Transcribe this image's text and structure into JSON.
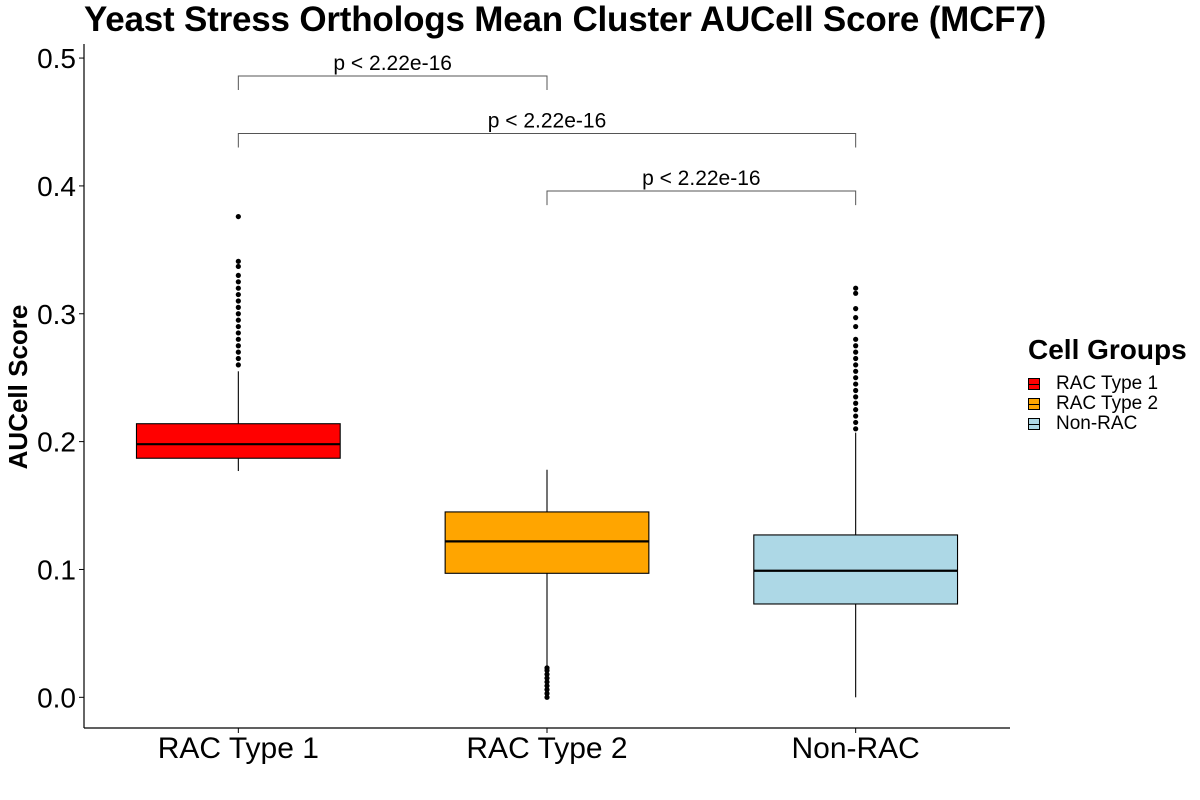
{
  "chart_data": {
    "type": "box",
    "title": "Yeast Stress Orthologs Mean Cluster AUCell Score (MCF7)",
    "xlabel": "",
    "ylabel": "AUCell Score",
    "ylim": [
      -0.024,
      0.511
    ],
    "yticks": [
      "0.0",
      "0.1",
      "0.2",
      "0.3",
      "0.4",
      "0.5"
    ],
    "categories": [
      "RAC Type 1",
      "RAC Type 2",
      "Non-RAC"
    ],
    "series": [
      {
        "name": "RAC Type 1",
        "color": "#ff0000",
        "whisker_low": 0.177,
        "q1": 0.187,
        "median": 0.198,
        "q3": 0.214,
        "whisker_high": 0.255,
        "outliers": [
          0.26,
          0.265,
          0.27,
          0.275,
          0.28,
          0.285,
          0.29,
          0.295,
          0.3,
          0.305,
          0.31,
          0.315,
          0.32,
          0.325,
          0.33,
          0.337,
          0.341,
          0.376
        ]
      },
      {
        "name": "RAC Type 2",
        "color": "#ffa500",
        "whisker_low": 0.024,
        "q1": 0.097,
        "median": 0.122,
        "q3": 0.145,
        "whisker_high": 0.178,
        "outliers": [
          0.0,
          0.003,
          0.006,
          0.009,
          0.012,
          0.015,
          0.018,
          0.021,
          0.023
        ]
      },
      {
        "name": "Non-RAC",
        "color": "#add8e6",
        "whisker_low": 0.0,
        "q1": 0.073,
        "median": 0.099,
        "q3": 0.127,
        "whisker_high": 0.207,
        "outliers": [
          0.21,
          0.215,
          0.22,
          0.225,
          0.23,
          0.235,
          0.24,
          0.245,
          0.25,
          0.255,
          0.26,
          0.265,
          0.27,
          0.275,
          0.28,
          0.29,
          0.297,
          0.304,
          0.316,
          0.32
        ]
      }
    ],
    "comparisons": [
      {
        "from": "RAC Type 1",
        "to": "RAC Type 2",
        "label": "p < 2.22e-16",
        "y": 0.486,
        "drop": 0.011
      },
      {
        "from": "RAC Type 1",
        "to": "Non-RAC",
        "label": "p < 2.22e-16",
        "y": 0.441,
        "drop": 0.011
      },
      {
        "from": "RAC Type 2",
        "to": "Non-RAC",
        "label": "p < 2.22e-16",
        "y": 0.396,
        "drop": 0.011
      }
    ],
    "legend": {
      "title": "Cell Groups",
      "position": "right",
      "entries": [
        "RAC Type 1",
        "RAC Type 2",
        "Non-RAC"
      ]
    },
    "grid": false
  }
}
